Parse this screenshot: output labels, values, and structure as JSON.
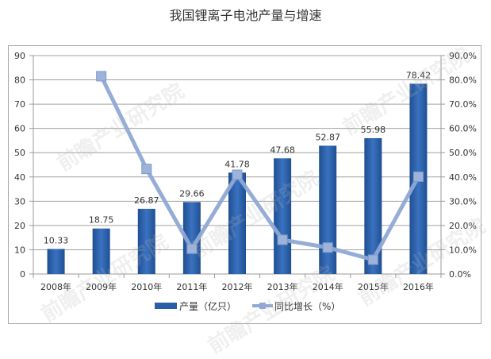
{
  "title": "我国锂离子电池产量与增速",
  "chart_data": {
    "type": "bar+line",
    "title": "我国锂离子电池产量与增速",
    "categories": [
      "2008年",
      "2009年",
      "2010年",
      "2011年",
      "2012年",
      "2013年",
      "2014年",
      "2015年",
      "2016年"
    ],
    "series": [
      {
        "name": "产量（亿只）",
        "type": "bar",
        "axis": "left",
        "color": "#2a5ea8",
        "values": [
          10.33,
          18.75,
          26.87,
          29.66,
          41.78,
          47.68,
          52.87,
          55.98,
          78.42
        ],
        "labels": [
          "10.33",
          "18.75",
          "26.87",
          "29.66",
          "41.78",
          "47.68",
          "52.87",
          "55.98",
          "78.42"
        ]
      },
      {
        "name": "同比增长（%）",
        "type": "line",
        "axis": "right",
        "color": "#8fa9d4",
        "values": [
          null,
          81.5,
          43.3,
          10.4,
          40.9,
          14.1,
          10.9,
          5.9,
          40.1
        ]
      }
    ],
    "left_axis": {
      "min": 0,
      "max": 90,
      "step": 10,
      "ticks": [
        "0",
        "10",
        "20",
        "30",
        "40",
        "50",
        "60",
        "70",
        "80",
        "90"
      ]
    },
    "right_axis": {
      "min": 0,
      "max": 90,
      "step": 10,
      "ticks": [
        "0.0%",
        "10.0%",
        "20.0%",
        "30.0%",
        "40.0%",
        "50.0%",
        "60.0%",
        "70.0%",
        "80.0%",
        "90.0%"
      ]
    },
    "grid": true,
    "legend_position": "bottom"
  },
  "legend": {
    "bar_label": "产量（亿只）",
    "line_label": "同比增长（%）"
  },
  "watermark": "前瞻产业研究院"
}
